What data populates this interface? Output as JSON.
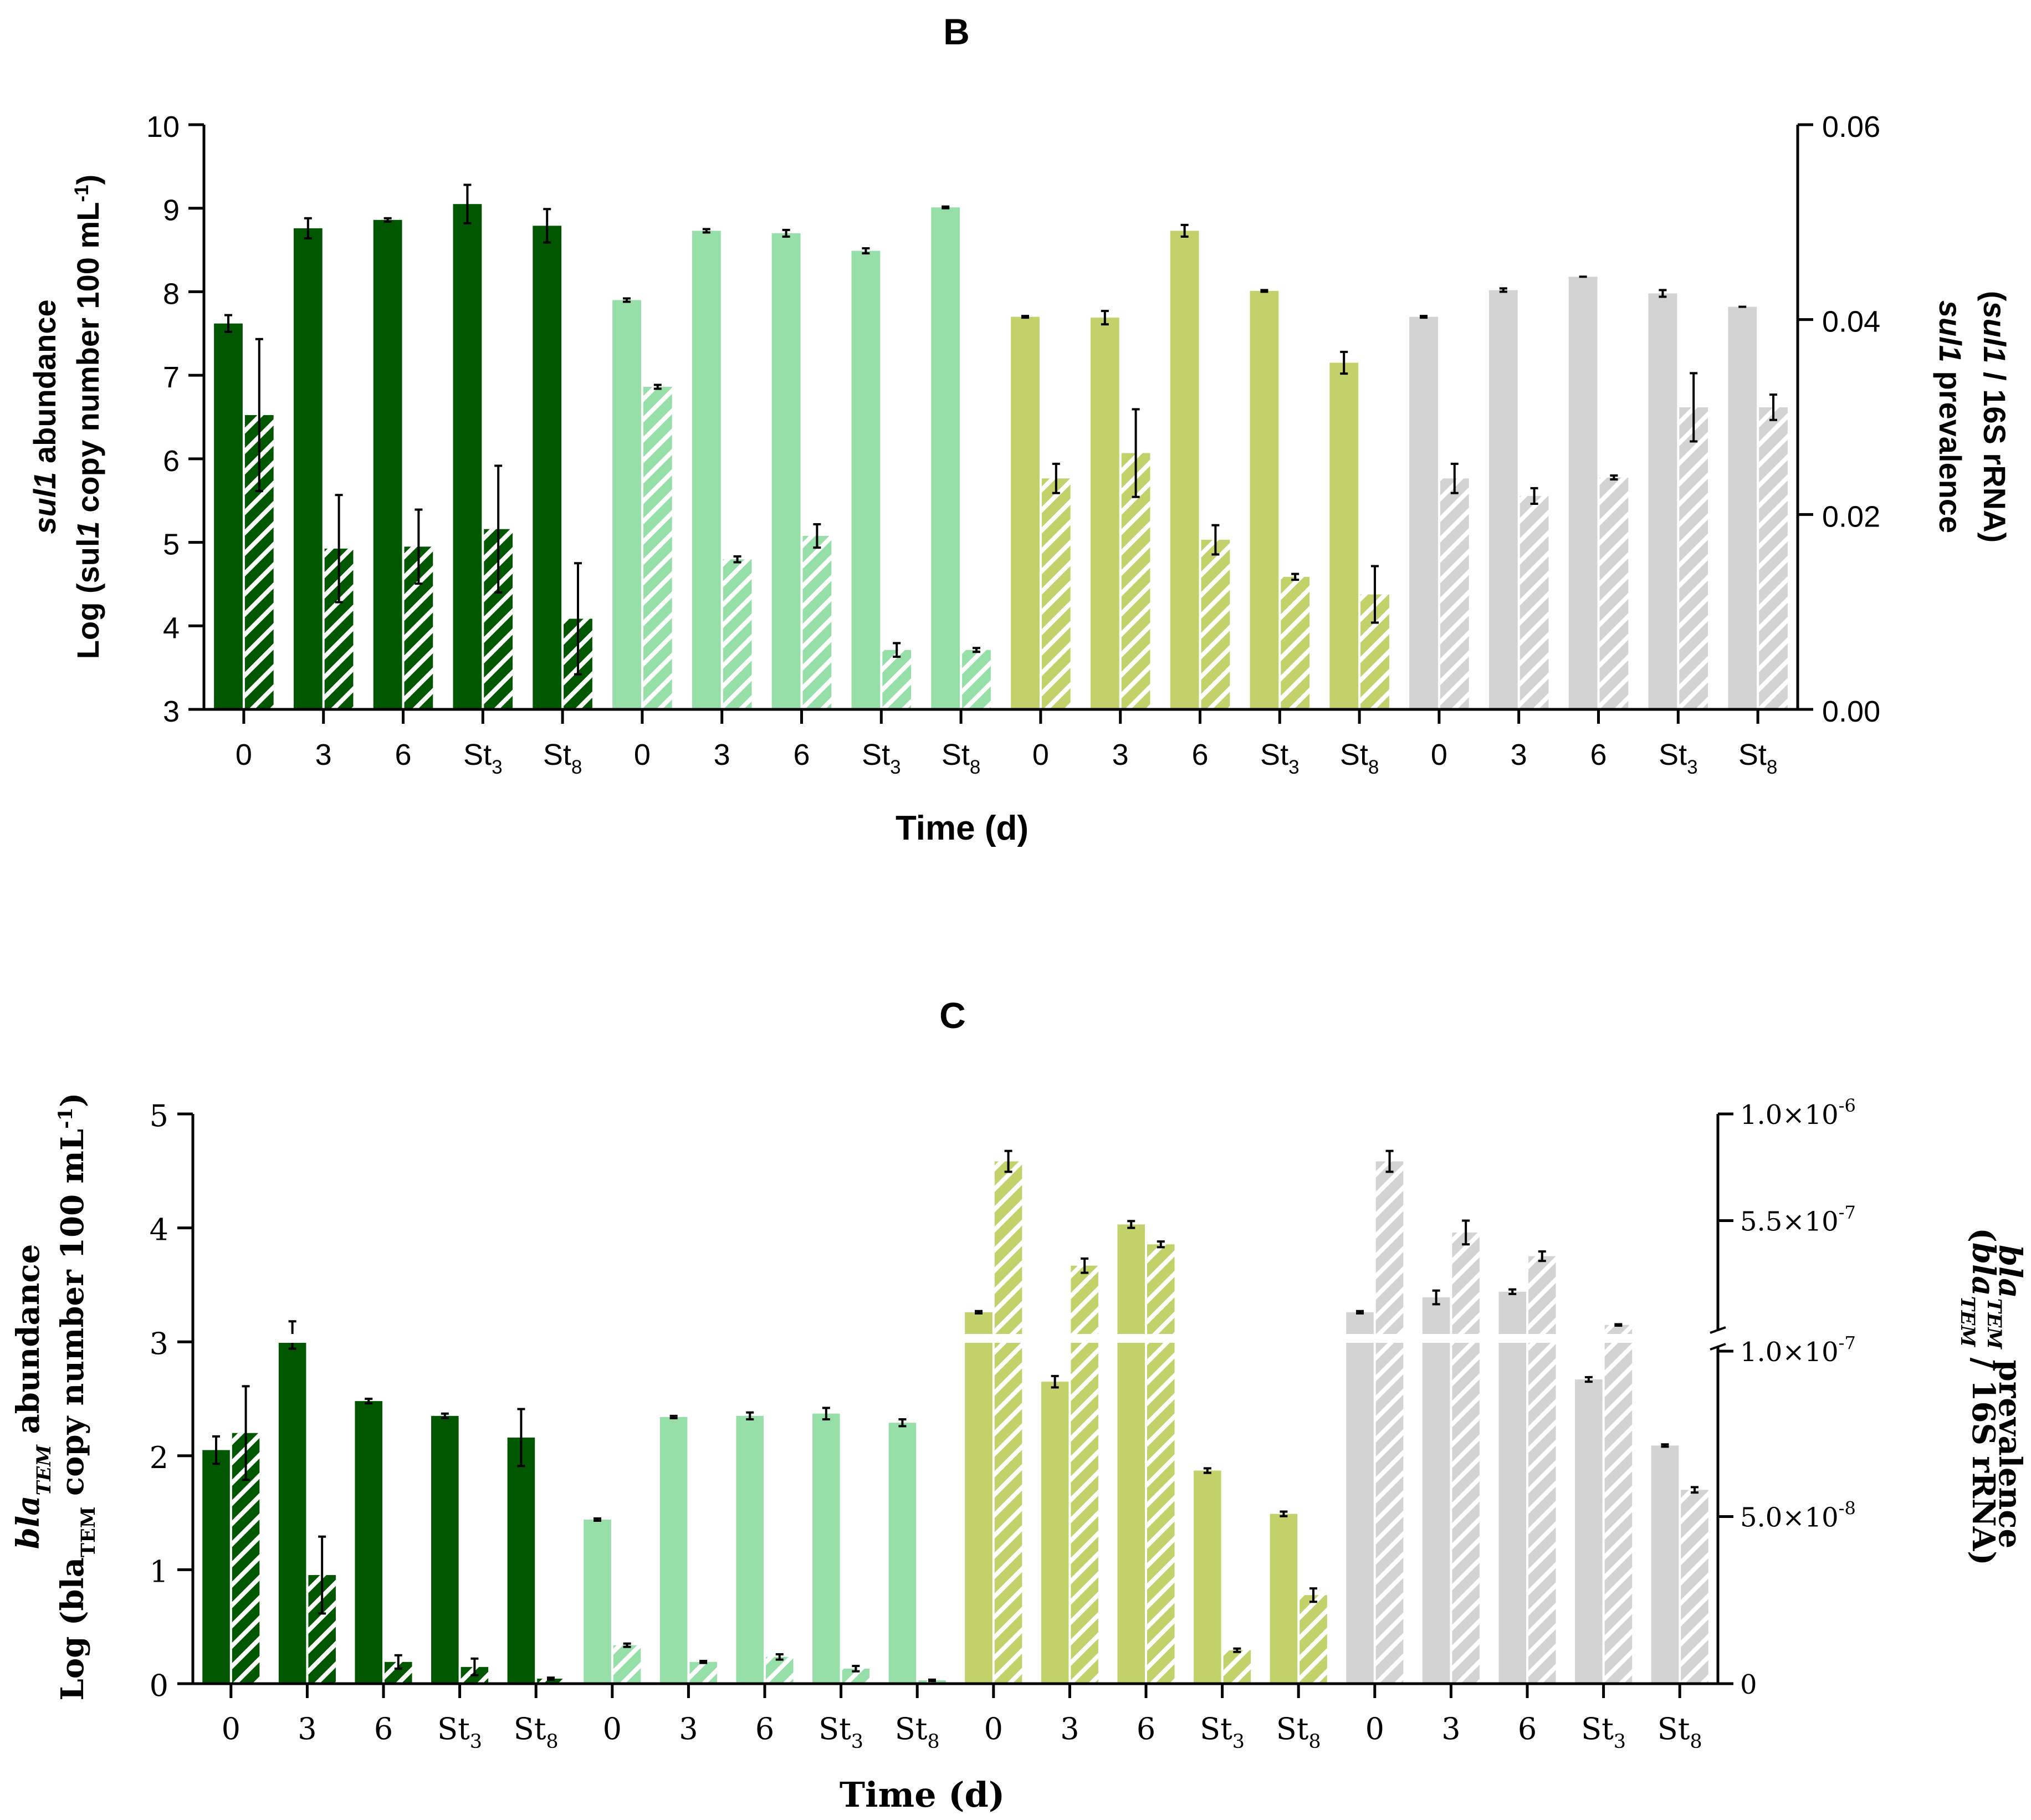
{
  "colors": {
    "dark_green": "#005700",
    "mint": "#96dfa8",
    "olive": "#c2d16a",
    "gray": "#d3d3d3",
    "axis": "#000000"
  },
  "chart_data": [
    {
      "id": "B",
      "type": "bar",
      "title": "B",
      "xlabel": "Time (d)",
      "ylabel_left_line1": [
        {
          "text": "sul1",
          "style": "italic"
        },
        {
          "text": " abundance",
          "style": "normal"
        }
      ],
      "ylabel_left_line2": [
        {
          "text": "Log (sul",
          "style": "normal"
        },
        {
          "text": "1",
          "style": "italic"
        },
        {
          "text": " copy number 100 mL",
          "style": "normal"
        },
        {
          "text": "-1",
          "style": "sup"
        },
        {
          "text": ")",
          "style": "normal"
        }
      ],
      "ylabel_right_line1": [
        {
          "text": "sul1",
          "style": "italic"
        },
        {
          "text": " prevalence",
          "style": "normal"
        }
      ],
      "ylabel_right_line2": [
        {
          "text": "(",
          "style": "normal"
        },
        {
          "text": "sul1",
          "style": "italic"
        },
        {
          "text": " / 16S rRNA)",
          "style": "normal"
        }
      ],
      "ylim_left": [
        3,
        10
      ],
      "yticks_left": [
        "3",
        "4",
        "5",
        "6",
        "7",
        "8",
        "9",
        "10"
      ],
      "ylim_right": [
        0,
        0.06
      ],
      "yticks_right": [
        "0.00",
        "0.02",
        "0.04",
        "0.06"
      ],
      "x_tick_labels": [
        {
          "main": "0",
          "sub": ""
        },
        {
          "main": "3",
          "sub": ""
        },
        {
          "main": "6",
          "sub": ""
        },
        {
          "main": "St",
          "sub": "3"
        },
        {
          "main": "St",
          "sub": "8"
        },
        {
          "main": "0",
          "sub": ""
        },
        {
          "main": "3",
          "sub": ""
        },
        {
          "main": "6",
          "sub": ""
        },
        {
          "main": "St",
          "sub": "3"
        },
        {
          "main": "St",
          "sub": "8"
        },
        {
          "main": "0",
          "sub": ""
        },
        {
          "main": "3",
          "sub": ""
        },
        {
          "main": "6",
          "sub": ""
        },
        {
          "main": "St",
          "sub": "3"
        },
        {
          "main": "St",
          "sub": "8"
        },
        {
          "main": "0",
          "sub": ""
        },
        {
          "main": "3",
          "sub": ""
        },
        {
          "main": "6",
          "sub": ""
        },
        {
          "main": "St",
          "sub": "3"
        },
        {
          "main": "St",
          "sub": "8"
        }
      ],
      "groups": [
        {
          "color_key": "dark_green",
          "abundance": [
            7.62,
            8.76,
            8.86,
            9.05,
            8.79
          ],
          "abundance_err": [
            0.1,
            0.12,
            0.02,
            0.23,
            0.2
          ],
          "prevalence": [
            0.0302,
            0.0165,
            0.0167,
            0.0185,
            0.0093
          ],
          "prevalence_err": [
            0.0078,
            0.0055,
            0.0038,
            0.0065,
            0.0057
          ]
        },
        {
          "color_key": "mint",
          "abundance": [
            7.9,
            8.73,
            8.7,
            8.49,
            9.01
          ],
          "abundance_err": [
            0.02,
            0.02,
            0.04,
            0.03,
            0.01
          ],
          "prevalence": [
            0.0331,
            0.0154,
            0.0178,
            0.0061,
            0.0061
          ],
          "prevalence_err": [
            0.0002,
            0.0003,
            0.0012,
            0.0007,
            0.0002
          ]
        },
        {
          "color_key": "olive",
          "abundance": [
            7.7,
            7.69,
            8.73,
            8.01,
            7.15
          ],
          "abundance_err": [
            0.01,
            0.08,
            0.07,
            0.01,
            0.13
          ],
          "prevalence": [
            0.0237,
            0.0263,
            0.0174,
            0.0136,
            0.0118
          ],
          "prevalence_err": [
            0.0015,
            0.0045,
            0.0015,
            0.0003,
            0.0029
          ]
        },
        {
          "color_key": "gray",
          "abundance": [
            7.7,
            8.02,
            8.18,
            7.98,
            7.82
          ],
          "abundance_err": [
            0.01,
            0.02,
            0,
            0.04,
            0
          ],
          "prevalence": [
            0.0237,
            0.0219,
            0.0238,
            0.031,
            0.031
          ],
          "prevalence_err": [
            0.0015,
            0.0008,
            0.0002,
            0.0035,
            0.0013
          ]
        }
      ]
    },
    {
      "id": "C",
      "type": "bar",
      "title": "C",
      "xlabel": "Time (d)",
      "ylabel_left_line1": [
        {
          "text": "bla",
          "style": "italic"
        },
        {
          "text": "TEM",
          "style": "sub-italic"
        },
        {
          "text": " abundance",
          "style": "normal"
        }
      ],
      "ylabel_left_line2": [
        {
          "text": "Log (bla",
          "style": "normal"
        },
        {
          "text": "TEM",
          "style": "sub"
        },
        {
          "text": " copy number 100 mL",
          "style": "normal"
        },
        {
          "text": "-1",
          "style": "sup"
        },
        {
          "text": ")",
          "style": "normal"
        }
      ],
      "ylabel_right_line1": [
        {
          "text": "bla",
          "style": "italic"
        },
        {
          "text": "TEM",
          "style": "sub-italic"
        },
        {
          "text": " prevalence",
          "style": "normal"
        }
      ],
      "ylabel_right_line2": [
        {
          "text": "(",
          "style": "normal"
        },
        {
          "text": "bla",
          "style": "italic"
        },
        {
          "text": "TEM",
          "style": "sub-italic"
        },
        {
          "text": " / 16S rRNA)",
          "style": "normal"
        }
      ],
      "ylim_left": [
        0,
        5
      ],
      "yticks_left": [
        "0",
        "1",
        "2",
        "3",
        "4",
        "5"
      ],
      "right_axis_segments": [
        {
          "range": [
            0,
            1e-07
          ],
          "ticks": [
            {
              "value": 0,
              "label": "0"
            },
            {
              "value": 5e-08,
              "label": "5.0×10-8"
            },
            {
              "value": 1e-07,
              "label": "1.0×10-7"
            }
          ]
        },
        {
          "range": [
            1e-07,
            1e-06
          ],
          "ticks": [
            {
              "value": 5.5e-07,
              "label": "5.5×10-7"
            },
            {
              "value": 1e-06,
              "label": "1.0×10-6"
            }
          ]
        }
      ],
      "right_tick_labels": [
        {
          "main": "0",
          "exp": ""
        },
        {
          "main": "5.0×10",
          "exp": "-8"
        },
        {
          "main": "1.0×10",
          "exp": "-7"
        },
        {
          "main": "5.5×10",
          "exp": "-7"
        },
        {
          "main": "1.0×10",
          "exp": "-6"
        }
      ],
      "x_tick_labels": [
        {
          "main": "0",
          "sub": ""
        },
        {
          "main": "3",
          "sub": ""
        },
        {
          "main": "6",
          "sub": ""
        },
        {
          "main": "St",
          "sub": "3"
        },
        {
          "main": "St",
          "sub": "8"
        },
        {
          "main": "0",
          "sub": ""
        },
        {
          "main": "3",
          "sub": ""
        },
        {
          "main": "6",
          "sub": ""
        },
        {
          "main": "St",
          "sub": "3"
        },
        {
          "main": "St",
          "sub": "8"
        },
        {
          "main": "0",
          "sub": ""
        },
        {
          "main": "3",
          "sub": ""
        },
        {
          "main": "6",
          "sub": ""
        },
        {
          "main": "St",
          "sub": "3"
        },
        {
          "main": "St",
          "sub": "8"
        },
        {
          "main": "0",
          "sub": ""
        },
        {
          "main": "3",
          "sub": ""
        },
        {
          "main": "6",
          "sub": ""
        },
        {
          "main": "St",
          "sub": "3"
        },
        {
          "main": "St",
          "sub": "8"
        }
      ],
      "groups": [
        {
          "color_key": "dark_green",
          "abundance": [
            2.05,
            3.06,
            2.48,
            2.35,
            2.16
          ],
          "abundance_err": [
            0.12,
            0.12,
            0.02,
            0.02,
            0.25
          ],
          "prevalence": [
            7.5e-08,
            3.25e-08,
            6.5e-09,
            5e-09,
            1.5e-09
          ],
          "prevalence_err": [
            1.4e-08,
            1.15e-08,
            2e-09,
            2.5e-09,
            3e-10
          ]
        },
        {
          "color_key": "mint",
          "abundance": [
            1.44,
            2.34,
            2.35,
            2.37,
            2.29
          ],
          "abundance_err": [
            0.01,
            0.01,
            0.03,
            0.05,
            0.03
          ],
          "prevalence": [
            1.15e-08,
            6.5e-09,
            8e-09,
            4.5e-09,
            1e-09
          ],
          "prevalence_err": [
            5e-10,
            3e-10,
            8e-10,
            8e-10,
            2e-10
          ]
        },
        {
          "color_key": "olive",
          "abundance": [
            3.26,
            2.65,
            4.03,
            1.87,
            1.49
          ],
          "abundance_err": [
            0.01,
            0.05,
            0.03,
            0.02,
            0.02
          ],
          "prevalence": [
            8e-07,
            3.6e-07,
            4.5e-07,
            1e-08,
            2.65e-08
          ],
          "prevalence_err": [
            4.4e-08,
            3e-08,
            1.2e-08,
            5e-10,
            2e-09
          ]
        },
        {
          "color_key": "gray",
          "abundance": [
            3.26,
            3.39,
            3.44,
            2.67,
            2.09
          ],
          "abundance_err": [
            0.01,
            0.06,
            0.02,
            0.02,
            0.01
          ],
          "prevalence": [
            8e-07,
            5e-07,
            4e-07,
            1.1e-07,
            5.8e-08
          ],
          "prevalence_err": [
            4.4e-08,
            5e-08,
            2e-08,
            3e-09,
            8e-10
          ]
        }
      ]
    }
  ]
}
